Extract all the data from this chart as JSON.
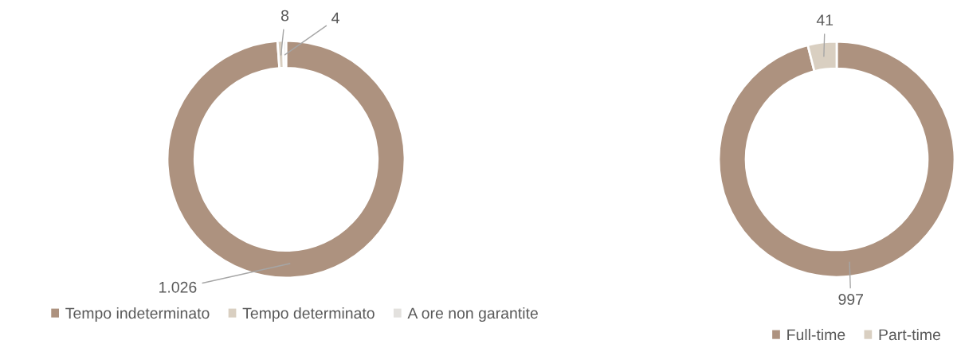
{
  "chart_data": [
    {
      "type": "donut",
      "categories": [
        "Tempo indeterminato",
        "Tempo determinato",
        "A ore non garantite"
      ],
      "values": [
        1026,
        8,
        4
      ],
      "value_labels": [
        "1.026",
        "8",
        "4"
      ],
      "colors": [
        "#ad927f",
        "#d9cfc1",
        "#e3e1de"
      ],
      "legend": "bottom"
    },
    {
      "type": "donut",
      "categories": [
        "Full-time",
        "Part-time"
      ],
      "values": [
        997,
        41
      ],
      "value_labels": [
        "997",
        "41"
      ],
      "colors": [
        "#ad927f",
        "#d9cfc1"
      ],
      "legend": "bottom"
    }
  ]
}
